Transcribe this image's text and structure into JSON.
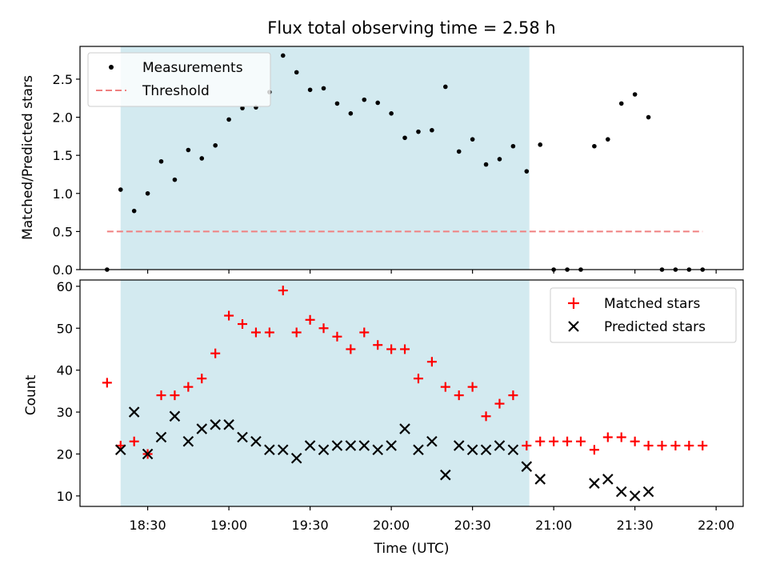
{
  "chart_data": [
    {
      "type": "scatter",
      "title": "Flux total observing time = 2.58 h",
      "ylabel": "Matched/Predicted stars",
      "xlabel": "",
      "xlim": [
        "18:05",
        "22:10"
      ],
      "ylim": [
        0,
        2.93
      ],
      "yticks": [
        "0.0",
        "0.5",
        "1.0",
        "1.5",
        "2.0",
        "2.5"
      ],
      "shaded_region": [
        "18:20",
        "20:51"
      ],
      "legend": {
        "placement": "top-left",
        "entries": [
          "Measurements",
          "Threshold"
        ]
      },
      "colors": {
        "shade": "#d3eaf0",
        "measurements": "#000000",
        "threshold": "#f08080"
      },
      "threshold": {
        "name": "Threshold",
        "y": 0.5,
        "x": [
          "18:15",
          "21:55"
        ]
      },
      "series": [
        {
          "name": "Measurements",
          "x": [
            "18:15",
            "18:20",
            "18:25",
            "18:30",
            "18:35",
            "18:40",
            "18:45",
            "18:50",
            "18:55",
            "19:00",
            "19:05",
            "19:10",
            "19:15",
            "19:20",
            "19:25",
            "19:30",
            "19:35",
            "19:40",
            "19:45",
            "19:50",
            "19:55",
            "20:00",
            "20:05",
            "20:10",
            "20:15",
            "20:20",
            "20:25",
            "20:30",
            "20:35",
            "20:40",
            "20:45",
            "20:50",
            "20:55",
            "21:00",
            "21:05",
            "21:10",
            "21:15",
            "21:20",
            "21:25",
            "21:30",
            "21:35",
            "21:40",
            "21:45",
            "21:50",
            "21:55"
          ],
          "y": [
            0,
            1.05,
            0.77,
            1.0,
            1.42,
            1.18,
            1.57,
            1.46,
            1.63,
            1.97,
            2.12,
            2.13,
            2.33,
            2.81,
            2.59,
            2.36,
            2.38,
            2.18,
            2.05,
            2.23,
            2.19,
            2.05,
            1.73,
            1.81,
            1.83,
            2.4,
            1.55,
            1.71,
            1.38,
            1.45,
            1.62,
            1.29,
            1.64,
            0,
            0,
            0,
            1.62,
            1.71,
            2.18,
            2.3,
            2.0,
            0,
            0,
            0,
            0
          ]
        }
      ]
    },
    {
      "type": "scatter",
      "title": "",
      "ylabel": "Count",
      "xlabel": "Time (UTC)",
      "xlim": [
        "18:05",
        "22:10"
      ],
      "ylim": [
        7.5,
        61.5
      ],
      "xticks": [
        "18:30",
        "19:00",
        "19:30",
        "20:00",
        "20:30",
        "21:00",
        "21:30",
        "22:00"
      ],
      "yticks": [
        "10",
        "20",
        "30",
        "40",
        "50",
        "60"
      ],
      "shaded_region": [
        "18:20",
        "20:51"
      ],
      "legend": {
        "placement": "top-right",
        "entries": [
          "Matched stars",
          "Predicted stars"
        ]
      },
      "colors": {
        "shade": "#d3eaf0",
        "matched": "#ff0000",
        "predicted": "#000000"
      },
      "series": [
        {
          "name": "Matched stars",
          "marker": "plus",
          "x": [
            "18:15",
            "18:20",
            "18:25",
            "18:30",
            "18:35",
            "18:40",
            "18:45",
            "18:50",
            "18:55",
            "19:00",
            "19:05",
            "19:10",
            "19:15",
            "19:20",
            "19:25",
            "19:30",
            "19:35",
            "19:40",
            "19:45",
            "19:50",
            "19:55",
            "20:00",
            "20:05",
            "20:10",
            "20:15",
            "20:20",
            "20:25",
            "20:30",
            "20:35",
            "20:40",
            "20:45",
            "20:50",
            "20:55",
            "21:00",
            "21:05",
            "21:10",
            "21:15",
            "21:20",
            "21:25",
            "21:30",
            "21:35",
            "21:40",
            "21:45",
            "21:50",
            "21:55"
          ],
          "y": [
            37,
            22,
            23,
            20,
            34,
            34,
            36,
            38,
            44,
            53,
            51,
            49,
            49,
            59,
            49,
            52,
            50,
            48,
            45,
            49,
            46,
            45,
            45,
            38,
            42,
            36,
            34,
            36,
            29,
            32,
            34,
            22,
            23,
            23,
            23,
            23,
            21,
            24,
            24,
            23,
            22,
            22,
            22,
            22,
            22
          ]
        },
        {
          "name": "Predicted stars",
          "marker": "x",
          "x": [
            "18:20",
            "18:25",
            "18:30",
            "18:35",
            "18:40",
            "18:45",
            "18:50",
            "18:55",
            "19:00",
            "19:05",
            "19:10",
            "19:15",
            "19:20",
            "19:25",
            "19:30",
            "19:35",
            "19:40",
            "19:45",
            "19:50",
            "19:55",
            "20:00",
            "20:05",
            "20:10",
            "20:15",
            "20:20",
            "20:25",
            "20:30",
            "20:35",
            "20:40",
            "20:45",
            "20:50",
            "20:55",
            "21:15",
            "21:20",
            "21:25",
            "21:30",
            "21:35"
          ],
          "y": [
            21,
            30,
            20,
            24,
            29,
            23,
            26,
            27,
            27,
            24,
            23,
            21,
            21,
            19,
            22,
            21,
            22,
            22,
            22,
            21,
            22,
            26,
            21,
            23,
            15,
            22,
            21,
            21,
            22,
            21,
            17,
            14,
            13,
            14,
            11,
            10,
            11
          ]
        }
      ]
    }
  ]
}
